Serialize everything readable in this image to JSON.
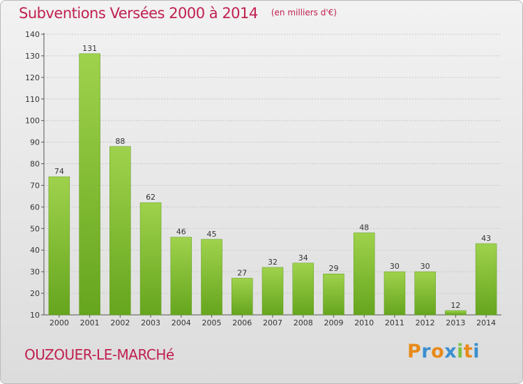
{
  "header": {
    "title": "Subventions Versées 2000 à 2014",
    "subtitle": "(en milliers d'€)"
  },
  "footer": {
    "commune": "OUZOUER-LE-MARCHé",
    "logo": {
      "letters": [
        "P",
        "r",
        "o",
        "x",
        "i",
        "t",
        "i"
      ],
      "colors": [
        "#e88a1a",
        "#3a8fd0",
        "#e88a1a",
        "#3a8fd0",
        "#7cc242",
        "#e88a1a",
        "#3a8fd0"
      ]
    }
  },
  "chart_data": {
    "type": "bar",
    "title": "Subventions Versées 2000 à 2014",
    "subtitle": "(en milliers d'€)",
    "categories": [
      "2000",
      "2001",
      "2002",
      "2003",
      "2004",
      "2005",
      "2006",
      "2007",
      "2008",
      "2009",
      "2010",
      "2011",
      "2012",
      "2013",
      "2014"
    ],
    "values": [
      74,
      131,
      88,
      62,
      46,
      45,
      27,
      32,
      34,
      29,
      48,
      30,
      30,
      12,
      43
    ],
    "ylim": [
      10,
      140
    ],
    "yticks": [
      10,
      20,
      30,
      40,
      50,
      60,
      70,
      80,
      90,
      100,
      110,
      120,
      130,
      140
    ],
    "grid": true,
    "bar_color": "#78b92e",
    "bar_color_light": "#9fd24c",
    "legend": "none"
  }
}
